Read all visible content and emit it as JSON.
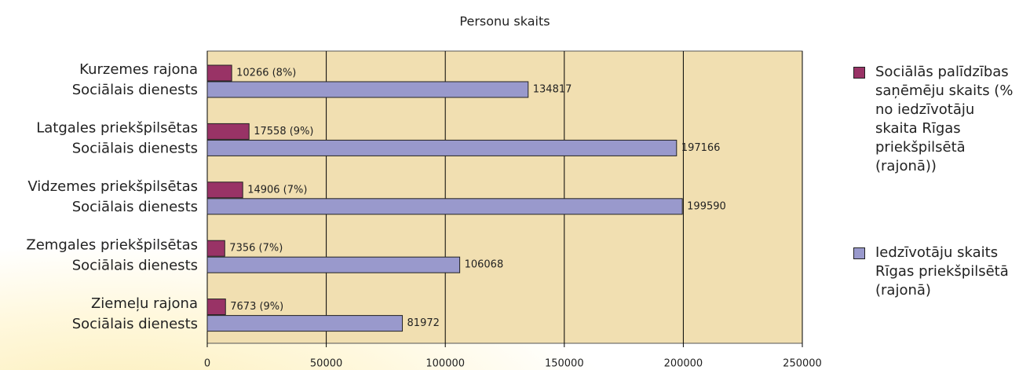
{
  "chart_data": {
    "type": "bar",
    "orientation": "horizontal",
    "title": "Personu skaits",
    "categories": [
      [
        "Kurzemes rajona",
        "Sociālais dienests"
      ],
      [
        "Latgales priekšpilsētas",
        "Sociālais dienests"
      ],
      [
        "Vidzemes priekšpilsētas",
        "Sociālais dienests"
      ],
      [
        "Zemgales  priekšpilsētas",
        "Sociālais dienests"
      ],
      [
        "Ziemeļu rajona",
        "Sociālais dienests"
      ]
    ],
    "series": [
      {
        "name": "Sociālās palīdzības saņēmēju skaits (% no iedzīvotāju skaita Rīgas priekšpilsētā (rajonā))",
        "color": "#993366",
        "values": [
          10266,
          17558,
          14906,
          7356,
          7673
        ],
        "value_labels": [
          "10266 (8%)",
          "17558 (9%)",
          "14906 (7%)",
          "7356 (7%)",
          "7673 (9%)"
        ]
      },
      {
        "name": "Iedzīvotāju skaits Rīgas priekšpilsētā (rajonā)",
        "color": "#9999cc",
        "values": [
          134817,
          197166,
          199590,
          106068,
          81972
        ]
      }
    ],
    "xlim": [
      0,
      250000
    ],
    "xticks": [
      0,
      50000,
      100000,
      150000,
      200000,
      250000
    ],
    "grid": true,
    "legend": "right"
  }
}
